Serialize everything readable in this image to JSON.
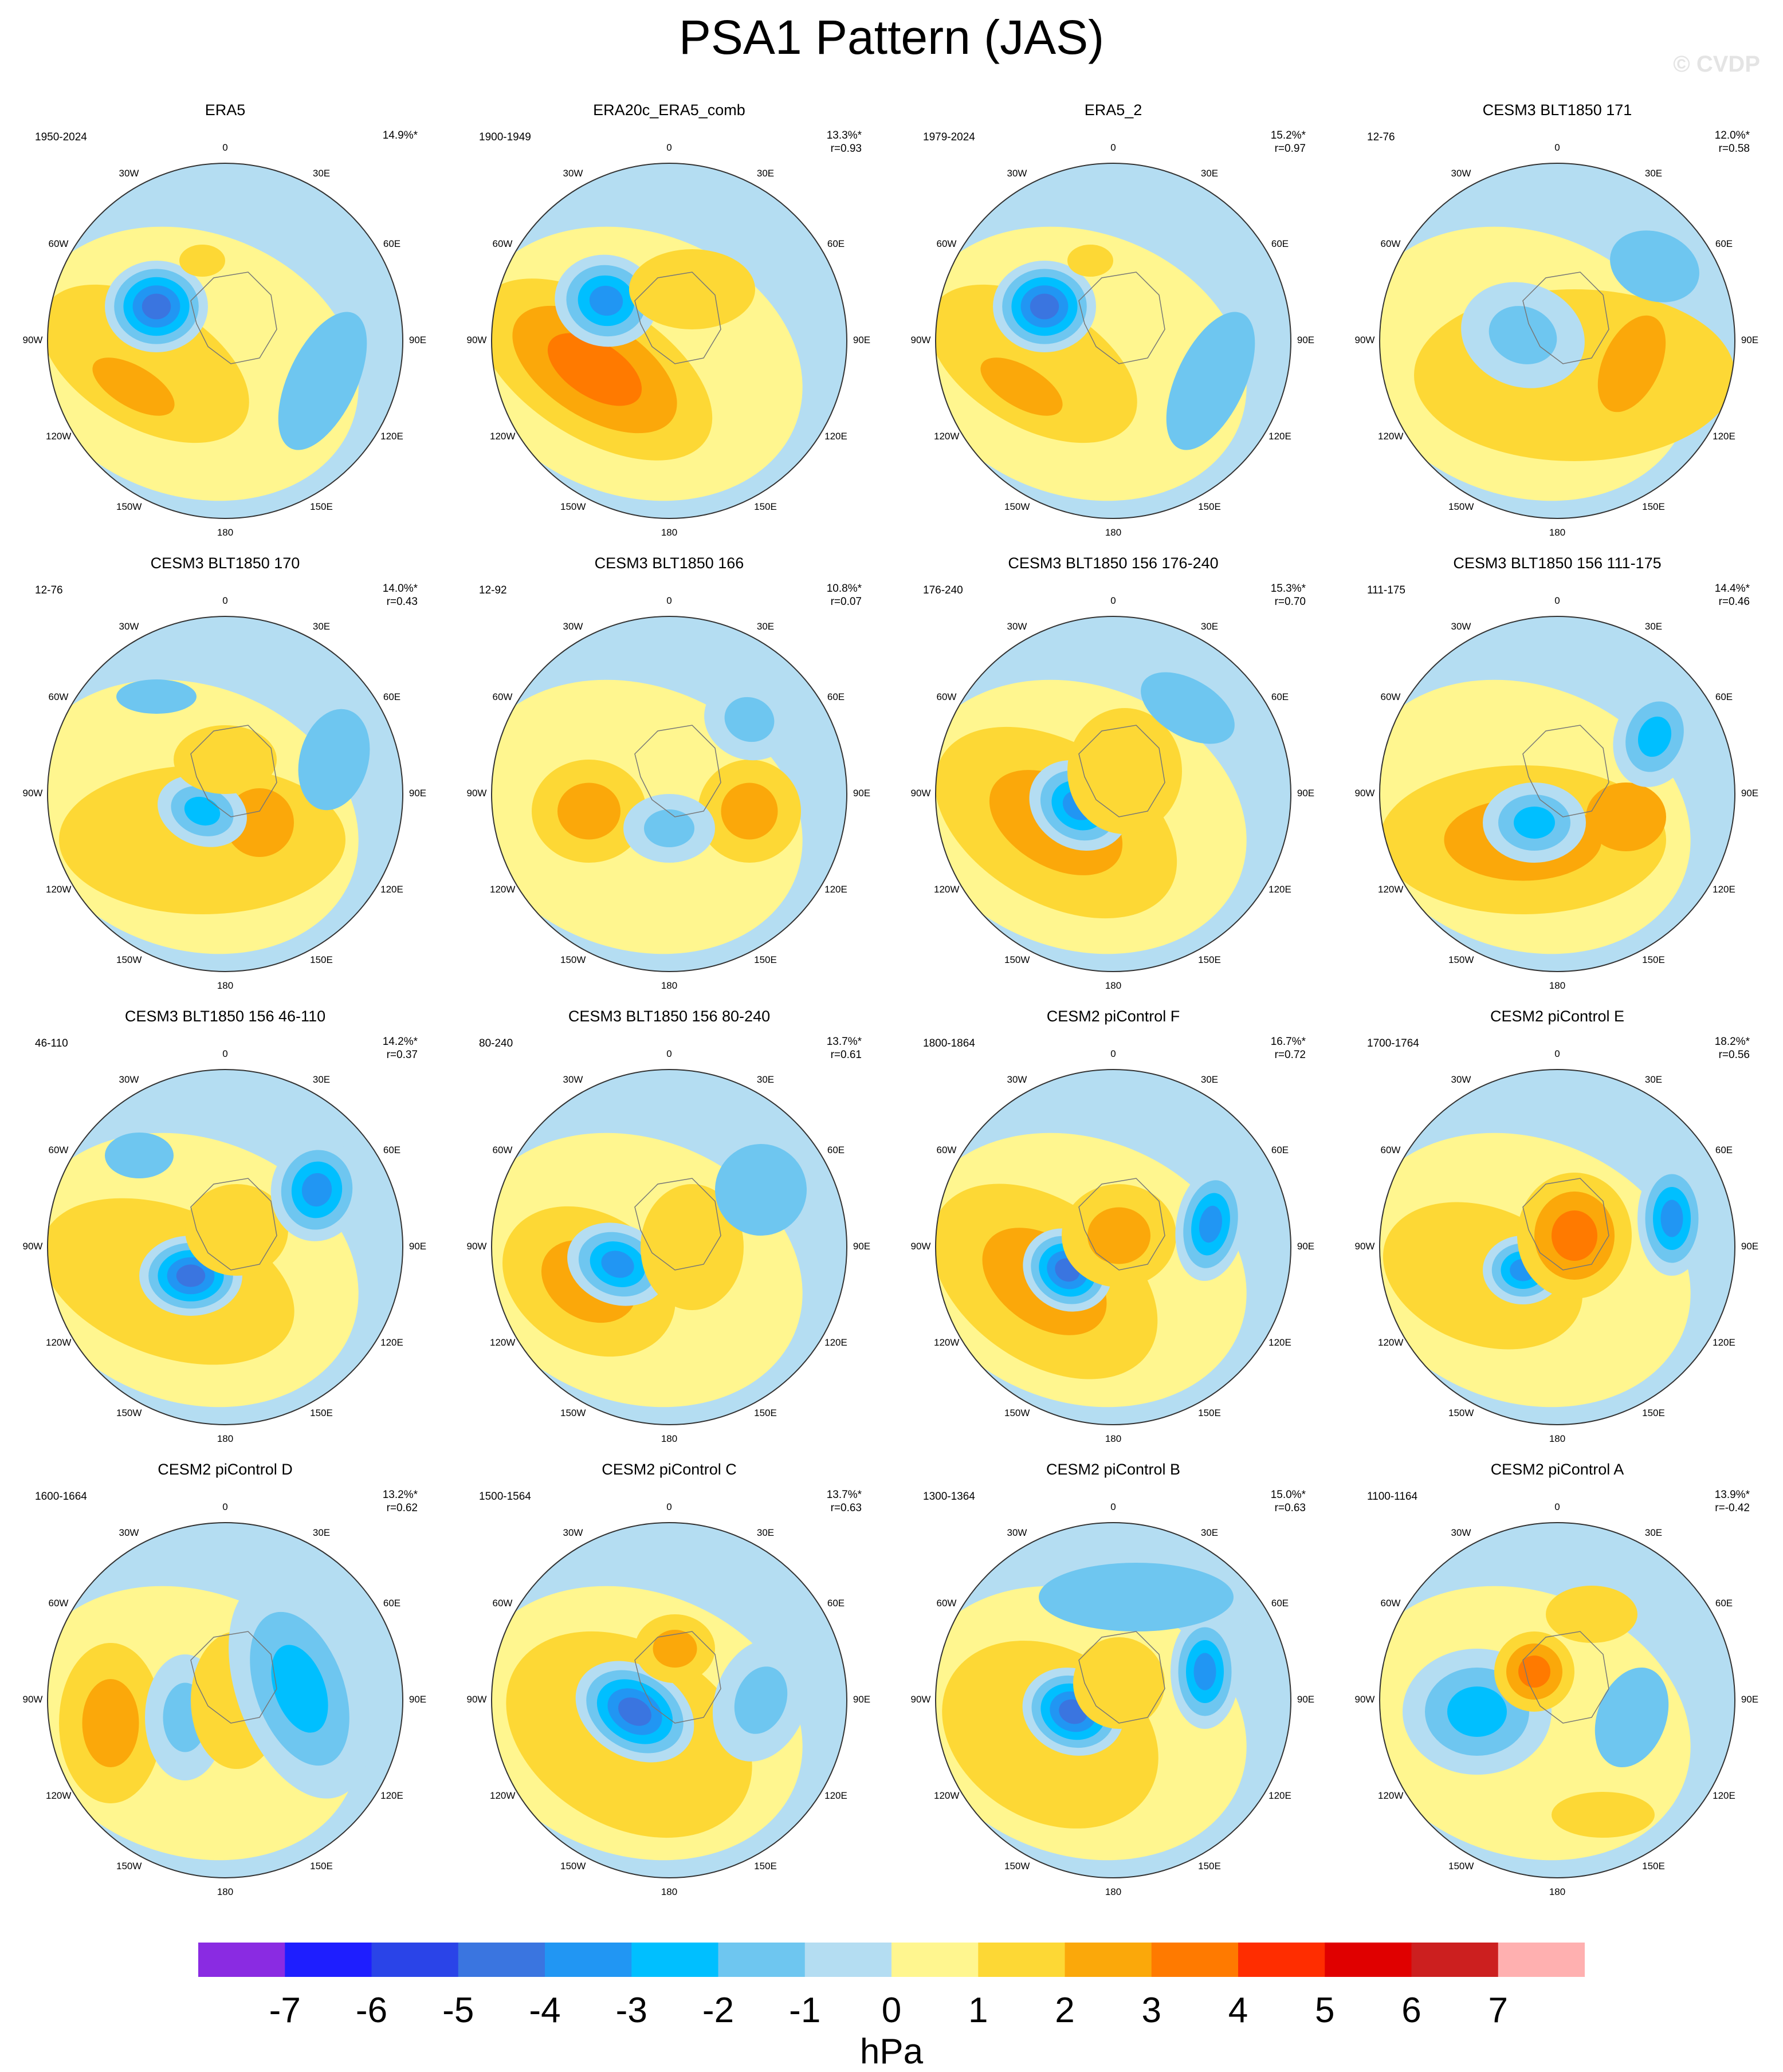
{
  "title": "PSA1 Pattern (JAS)",
  "watermark": "© CVDP",
  "unit": "hPa",
  "colorbar": {
    "labels": [
      "-7",
      "-6",
      "-5",
      "-4",
      "-3",
      "-2",
      "-1",
      "0",
      "1",
      "2",
      "3",
      "4",
      "5",
      "6",
      "7"
    ],
    "colors": [
      "#8a2be2",
      "#1e1eff",
      "#2a44e8",
      "#3a75e0",
      "#2196f3",
      "#00bfff",
      "#6ec6f0",
      "#b4ddf2",
      "#fff68f",
      "#fdd835",
      "#fba80a",
      "#ff7a00",
      "#ff2d00",
      "#e00000",
      "#cc1f1f",
      "#ffb0b0"
    ]
  },
  "lon_labels": [
    "0",
    "30E",
    "60E",
    "90E",
    "120E",
    "150E",
    "180",
    "150W",
    "120W",
    "90W",
    "60W",
    "30W"
  ],
  "panels": [
    {
      "title": "ERA5",
      "period": "1950-2024",
      "pct": "14.9%*",
      "r": "",
      "shape": "era5"
    },
    {
      "title": "ERA20c_ERA5_comb",
      "period": "1900-1949",
      "pct": "13.3%*",
      "r": "r=0.93",
      "shape": "era20c"
    },
    {
      "title": "ERA5_2",
      "period": "1979-2024",
      "pct": "15.2%*",
      "r": "r=0.97",
      "shape": "era5"
    },
    {
      "title": "CESM3 BLT1850 171",
      "period": "12-76",
      "pct": "12.0%*",
      "r": "r=0.58",
      "shape": "m171"
    },
    {
      "title": "CESM3 BLT1850 170",
      "period": "12-76",
      "pct": "14.0%*",
      "r": "r=0.43",
      "shape": "m170"
    },
    {
      "title": "CESM3 BLT1850 166",
      "period": "12-92",
      "pct": "10.8%*",
      "r": "r=0.07",
      "shape": "m166"
    },
    {
      "title": "CESM3 BLT1850 156 176-240",
      "period": "176-240",
      "pct": "15.3%*",
      "r": "r=0.70",
      "shape": "m156a"
    },
    {
      "title": "CESM3 BLT1850 156 111-175",
      "period": "111-175",
      "pct": "14.4%*",
      "r": "r=0.46",
      "shape": "m156b"
    },
    {
      "title": "CESM3 BLT1850 156 46-110",
      "period": "46-110",
      "pct": "14.2%*",
      "r": "r=0.37",
      "shape": "m156c"
    },
    {
      "title": "CESM3 BLT1850 156 80-240",
      "period": "80-240",
      "pct": "13.7%*",
      "r": "r=0.61",
      "shape": "m156d"
    },
    {
      "title": "CESM2 piControl F",
      "period": "1800-1864",
      "pct": "16.7%*",
      "r": "r=0.72",
      "shape": "cF"
    },
    {
      "title": "CESM2 piControl E",
      "period": "1700-1764",
      "pct": "18.2%*",
      "r": "r=0.56",
      "shape": "cE"
    },
    {
      "title": "CESM2 piControl D",
      "period": "1600-1664",
      "pct": "13.2%*",
      "r": "r=0.62",
      "shape": "cD"
    },
    {
      "title": "CESM2 piControl C",
      "period": "1500-1564",
      "pct": "13.7%*",
      "r": "r=0.63",
      "shape": "cC"
    },
    {
      "title": "CESM2 piControl B",
      "period": "1300-1364",
      "pct": "15.0%*",
      "r": "r=0.63",
      "shape": "cB"
    },
    {
      "title": "CESM2 piControl A",
      "period": "1100-1164",
      "pct": "13.9%*",
      "r": "r=-0.42",
      "shape": "cA"
    }
  ]
}
